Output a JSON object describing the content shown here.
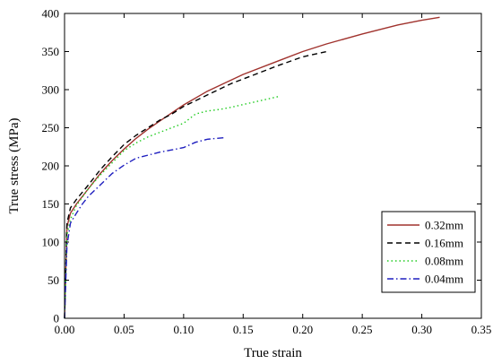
{
  "chart_data": {
    "type": "line",
    "xlabel": "True strain",
    "ylabel": "True stress (MPa)",
    "xlim": [
      0,
      0.35
    ],
    "ylim": [
      0,
      400
    ],
    "xticks": [
      0.0,
      0.05,
      0.1,
      0.15,
      0.2,
      0.25,
      0.3,
      0.35
    ],
    "xtick_labels": [
      "0.00",
      "0.05",
      "0.10",
      "0.15",
      "0.20",
      "0.25",
      "0.30",
      "0.35"
    ],
    "yticks": [
      0,
      50,
      100,
      150,
      200,
      250,
      300,
      350,
      400
    ],
    "ytick_labels": [
      "0",
      "50",
      "100",
      "150",
      "200",
      "250",
      "300",
      "350",
      "400"
    ],
    "grid": false,
    "legend_position": "bottom-right",
    "series": [
      {
        "name": "0.32mm",
        "color": "#a0322d",
        "dash": "solid",
        "x": [
          0,
          0.002,
          0.005,
          0.01,
          0.02,
          0.03,
          0.04,
          0.05,
          0.06,
          0.07,
          0.08,
          0.1,
          0.12,
          0.15,
          0.18,
          0.2,
          0.22,
          0.25,
          0.28,
          0.3,
          0.315
        ],
        "y": [
          0,
          120,
          138,
          150,
          170,
          190,
          207,
          222,
          236,
          248,
          259,
          280,
          298,
          320,
          338,
          350,
          360,
          373,
          385,
          391,
          395
        ]
      },
      {
        "name": "0.16mm",
        "color": "#000000",
        "dash": "dashed",
        "x": [
          0,
          0.002,
          0.005,
          0.01,
          0.02,
          0.03,
          0.04,
          0.05,
          0.06,
          0.07,
          0.08,
          0.09,
          0.1,
          0.12,
          0.14,
          0.16,
          0.18,
          0.2,
          0.22
        ],
        "y": [
          0,
          125,
          145,
          156,
          175,
          195,
          212,
          228,
          240,
          250,
          260,
          268,
          278,
          293,
          308,
          320,
          332,
          343,
          350
        ]
      },
      {
        "name": "0.08mm",
        "color": "#22cc22",
        "dash": "dotted",
        "x": [
          0,
          0.002,
          0.005,
          0.01,
          0.02,
          0.03,
          0.04,
          0.05,
          0.06,
          0.07,
          0.08,
          0.09,
          0.1,
          0.11,
          0.12,
          0.13,
          0.14,
          0.16,
          0.18
        ],
        "y": [
          0,
          110,
          130,
          148,
          170,
          188,
          204,
          220,
          230,
          238,
          244,
          250,
          256,
          268,
          272,
          274,
          277,
          284,
          291
        ]
      },
      {
        "name": "0.04mm",
        "color": "#1f1fbf",
        "dash": "dashdot",
        "x": [
          0,
          0.002,
          0.005,
          0.01,
          0.015,
          0.02,
          0.03,
          0.04,
          0.05,
          0.06,
          0.07,
          0.08,
          0.09,
          0.1,
          0.11,
          0.12,
          0.135
        ],
        "y": [
          0,
          95,
          125,
          138,
          150,
          160,
          175,
          190,
          201,
          210,
          214,
          218,
          221,
          224,
          231,
          235,
          237
        ]
      }
    ]
  }
}
